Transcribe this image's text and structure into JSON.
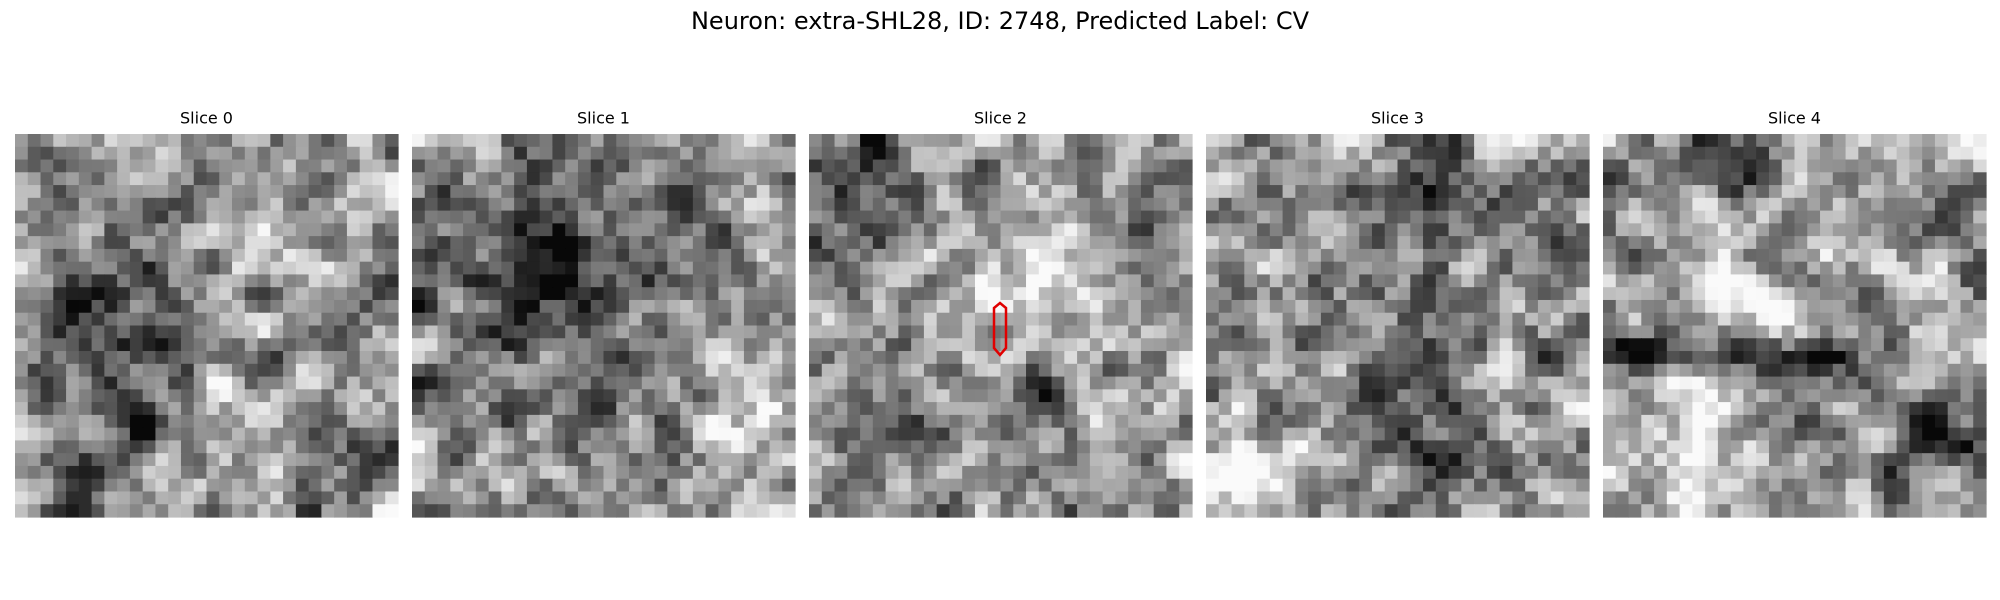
{
  "title": "Neuron: extra-SHL28, ID: 2748, Predicted Label: CV",
  "panels": [
    {
      "title": "Slice 0"
    },
    {
      "title": "Slice 1"
    },
    {
      "title": "Slice 2"
    },
    {
      "title": "Slice 3"
    },
    {
      "title": "Slice 4"
    }
  ]
}
